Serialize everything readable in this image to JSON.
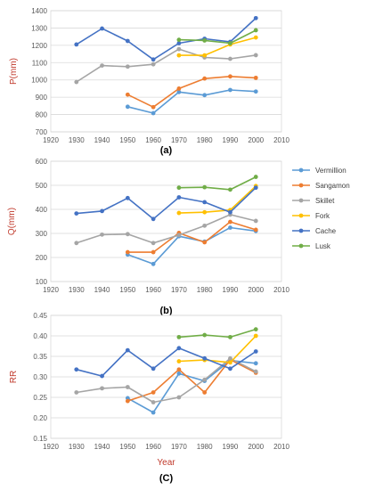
{
  "legend_position": "right",
  "chart_data": [
    {
      "type": "line",
      "panel_label": "(a)",
      "ylabel": "P(mm)",
      "xlabel": "",
      "xlim": [
        1920,
        2010
      ],
      "ylim": [
        700,
        1400
      ],
      "xticks": [
        1920,
        1930,
        1940,
        1950,
        1960,
        1970,
        1980,
        1990,
        2000,
        2010
      ],
      "yticks": [
        700,
        800,
        900,
        1000,
        1100,
        1200,
        1300,
        1400
      ],
      "grid": true,
      "series": [
        {
          "name": "Vermillion",
          "color": "#5b9bd5",
          "points": [
            [
              1950,
              845
            ],
            [
              1960,
              808
            ],
            [
              1970,
              930
            ],
            [
              1980,
              912
            ],
            [
              1990,
              942
            ],
            [
              2000,
              933
            ]
          ]
        },
        {
          "name": "Sangamon",
          "color": "#ed7d31",
          "points": [
            [
              1950,
              915
            ],
            [
              1960,
              843
            ],
            [
              1970,
              950
            ],
            [
              1980,
              1008
            ],
            [
              1990,
              1020
            ],
            [
              2000,
              1012
            ]
          ]
        },
        {
          "name": "Skillet",
          "color": "#a5a5a5",
          "points": [
            [
              1930,
              988
            ],
            [
              1940,
              1083
            ],
            [
              1950,
              1077
            ],
            [
              1960,
              1090
            ],
            [
              1970,
              1178
            ],
            [
              1980,
              1130
            ],
            [
              1990,
              1122
            ],
            [
              2000,
              1143
            ]
          ]
        },
        {
          "name": "Fork",
          "color": "#ffc000",
          "points": [
            [
              1970,
              1142
            ],
            [
              1980,
              1142
            ],
            [
              1990,
              1205
            ],
            [
              2000,
              1245
            ]
          ]
        },
        {
          "name": "Cache",
          "color": "#4472c4",
          "points": [
            [
              1930,
              1205
            ],
            [
              1940,
              1297
            ],
            [
              1950,
              1225
            ],
            [
              1960,
              1118
            ],
            [
              1970,
              1212
            ],
            [
              1980,
              1238
            ],
            [
              1990,
              1220
            ],
            [
              2000,
              1357
            ]
          ]
        },
        {
          "name": "Lusk",
          "color": "#70ad47",
          "points": [
            [
              1970,
              1232
            ],
            [
              1980,
              1228
            ],
            [
              1990,
              1212
            ],
            [
              2000,
              1287
            ]
          ]
        }
      ]
    },
    {
      "type": "line",
      "panel_label": "(b)",
      "ylabel": "Q(mm)",
      "xlabel": "",
      "xlim": [
        1920,
        2010
      ],
      "ylim": [
        100,
        600
      ],
      "xticks": [
        1920,
        1930,
        1940,
        1950,
        1960,
        1970,
        1980,
        1990,
        2000,
        2010
      ],
      "yticks": [
        100,
        200,
        300,
        400,
        500,
        600
      ],
      "grid": true,
      "series": [
        {
          "name": "Vermillion",
          "color": "#5b9bd5",
          "points": [
            [
              1950,
              212
            ],
            [
              1960,
              173
            ],
            [
              1970,
              288
            ],
            [
              1980,
              266
            ],
            [
              1990,
              324
            ],
            [
              2000,
              310
            ]
          ]
        },
        {
          "name": "Sangamon",
          "color": "#ed7d31",
          "points": [
            [
              1950,
              222
            ],
            [
              1960,
              222
            ],
            [
              1970,
              302
            ],
            [
              1980,
              263
            ],
            [
              1990,
              348
            ],
            [
              2000,
              315
            ]
          ]
        },
        {
          "name": "Skillet",
          "color": "#a5a5a5",
          "points": [
            [
              1930,
              260
            ],
            [
              1940,
              295
            ],
            [
              1950,
              297
            ],
            [
              1960,
              260
            ],
            [
              1970,
              293
            ],
            [
              1980,
              332
            ],
            [
              1990,
              378
            ],
            [
              2000,
              352
            ]
          ]
        },
        {
          "name": "Fork",
          "color": "#ffc000",
          "points": [
            [
              1970,
              385
            ],
            [
              1980,
              388
            ],
            [
              1990,
              397
            ],
            [
              2000,
              497
            ]
          ]
        },
        {
          "name": "Cache",
          "color": "#4472c4",
          "points": [
            [
              1930,
              383
            ],
            [
              1940,
              393
            ],
            [
              1950,
              447
            ],
            [
              1960,
              360
            ],
            [
              1970,
              450
            ],
            [
              1980,
              430
            ],
            [
              1990,
              388
            ],
            [
              2000,
              490
            ]
          ]
        },
        {
          "name": "Lusk",
          "color": "#70ad47",
          "points": [
            [
              1970,
              490
            ],
            [
              1980,
              492
            ],
            [
              1990,
              482
            ],
            [
              2000,
              535
            ]
          ]
        }
      ]
    },
    {
      "type": "line",
      "panel_label": "(C)",
      "ylabel": "RR",
      "xlabel": "Year",
      "xlim": [
        1920,
        2010
      ],
      "ylim": [
        0.15,
        0.45
      ],
      "xticks": [
        1920,
        1930,
        1940,
        1950,
        1960,
        1970,
        1980,
        1990,
        2000,
        2010
      ],
      "yticks": [
        0.15,
        0.2,
        0.25,
        0.3,
        0.35,
        0.4,
        0.45
      ],
      "grid": true,
      "series": [
        {
          "name": "Vermillion",
          "color": "#5b9bd5",
          "points": [
            [
              1950,
              0.248
            ],
            [
              1960,
              0.213
            ],
            [
              1970,
              0.308
            ],
            [
              1980,
              0.29
            ],
            [
              1990,
              0.34
            ],
            [
              2000,
              0.333
            ]
          ]
        },
        {
          "name": "Sangamon",
          "color": "#ed7d31",
          "points": [
            [
              1950,
              0.241
            ],
            [
              1960,
              0.262
            ],
            [
              1970,
              0.318
            ],
            [
              1980,
              0.262
            ],
            [
              1990,
              0.342
            ],
            [
              2000,
              0.31
            ]
          ]
        },
        {
          "name": "Skillet",
          "color": "#a5a5a5",
          "points": [
            [
              1930,
              0.262
            ],
            [
              1940,
              0.272
            ],
            [
              1950,
              0.275
            ],
            [
              1960,
              0.238
            ],
            [
              1970,
              0.25
            ],
            [
              1980,
              0.293
            ],
            [
              1990,
              0.345
            ],
            [
              2000,
              0.313
            ]
          ]
        },
        {
          "name": "Fork",
          "color": "#ffc000",
          "points": [
            [
              1970,
              0.338
            ],
            [
              1980,
              0.341
            ],
            [
              1990,
              0.335
            ],
            [
              2000,
              0.4
            ]
          ]
        },
        {
          "name": "Cache",
          "color": "#4472c4",
          "points": [
            [
              1930,
              0.318
            ],
            [
              1940,
              0.302
            ],
            [
              1950,
              0.365
            ],
            [
              1960,
              0.32
            ],
            [
              1970,
              0.37
            ],
            [
              1980,
              0.345
            ],
            [
              1990,
              0.32
            ],
            [
              2000,
              0.362
            ]
          ]
        },
        {
          "name": "Lusk",
          "color": "#70ad47",
          "points": [
            [
              1970,
              0.397
            ],
            [
              1980,
              0.402
            ],
            [
              1990,
              0.397
            ],
            [
              2000,
              0.416
            ]
          ]
        }
      ]
    }
  ]
}
